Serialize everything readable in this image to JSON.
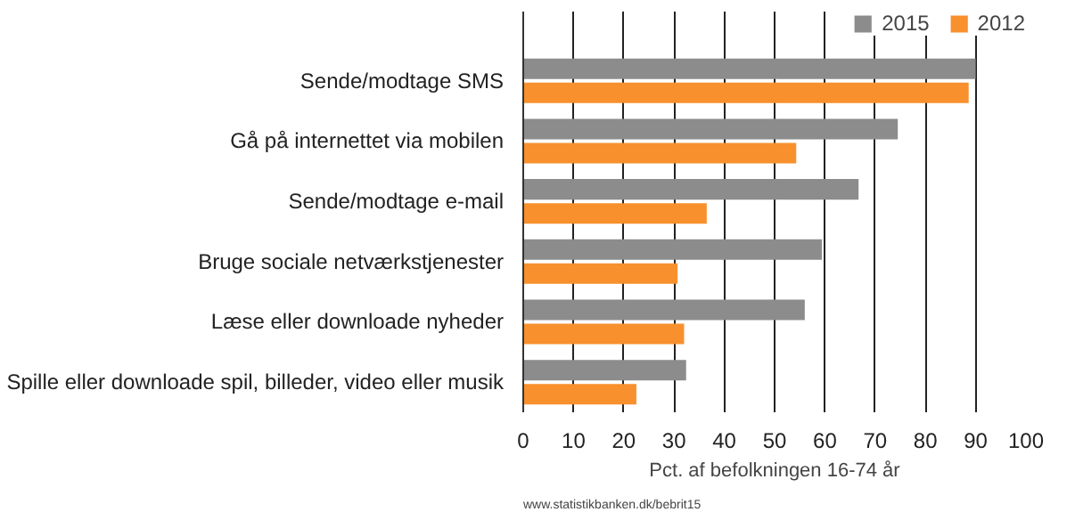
{
  "chart_data": {
    "type": "bar",
    "orientation": "horizontal",
    "xlabel": "Pct. af befolkningen 16-74 år",
    "categories": [
      "Sende/modtage SMS",
      "Gå på internettet via mobilen",
      "Sende/modtage e-mail",
      "Bruge sociale netværkstjenester",
      "Læse eller downloade nyheder",
      "Spille eller downloade spil, billeder, video eller musik"
    ],
    "series": [
      {
        "name": "2015",
        "color": "#8c8c8c",
        "values": [
          90,
          74.5,
          66.7,
          59.4,
          56,
          32.4
        ]
      },
      {
        "name": "2012",
        "color": "#f7902d",
        "values": [
          88.6,
          54.3,
          36.5,
          30.7,
          32,
          22.5
        ]
      }
    ],
    "xlim": [
      0,
      100
    ],
    "xticks": [
      0,
      10,
      20,
      30,
      40,
      50,
      60,
      70,
      80,
      90,
      100
    ],
    "grid": "x",
    "legend": "top right",
    "annotations": [
      "www.statistikbanken.dk/bebrit15"
    ]
  }
}
